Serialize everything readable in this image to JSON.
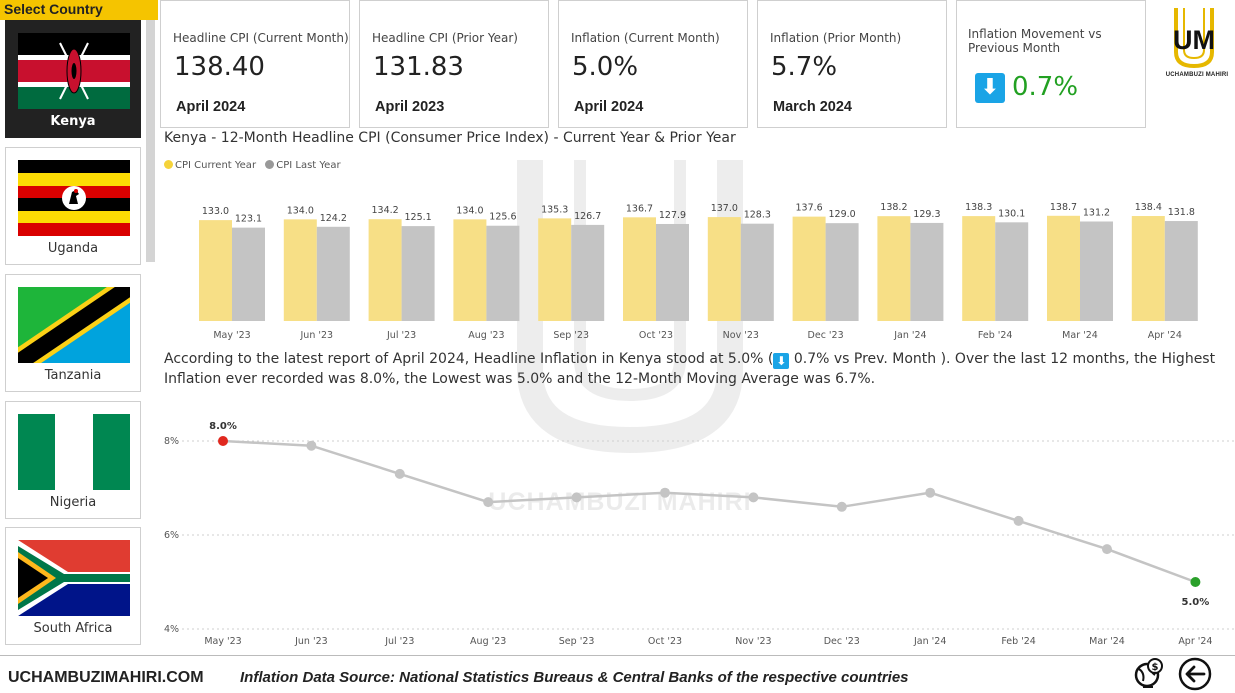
{
  "sidebar": {
    "header": "Select Country",
    "countries": [
      {
        "name": "Kenya",
        "selected": true
      },
      {
        "name": "Uganda",
        "selected": false
      },
      {
        "name": "Tanzania",
        "selected": false
      },
      {
        "name": "Nigeria",
        "selected": false
      },
      {
        "name": "South Africa",
        "selected": false
      }
    ]
  },
  "kpis": {
    "cpi_current": {
      "label": "Headline CPI (Current Month)",
      "value": "138.40",
      "period": "April 2024"
    },
    "cpi_prior_year": {
      "label": "Headline CPI (Prior Year)",
      "value": "131.83",
      "period": "April 2023"
    },
    "inflation_current": {
      "label": "Inflation (Current Month)",
      "value": "5.0%",
      "period": "April 2024"
    },
    "inflation_prior": {
      "label": "Inflation (Prior Month)",
      "value": "5.7%",
      "period": "March 2024"
    },
    "movement": {
      "label": "Inflation Movement vs Previous Month",
      "value": "0.7%",
      "direction": "down",
      "arrow_glyph": "⬇"
    }
  },
  "logo": {
    "mark": "UM",
    "text": "UCHAMBUZI MAHIRI"
  },
  "watermark": {
    "text": "UCHAMBUZI MAHIRI"
  },
  "bar_chart": {
    "title": "Kenya - 12-Month Headline CPI (Consumer Price Index) - Current Year & Prior Year",
    "legend": [
      {
        "name": "CPI Current Year",
        "color": "#f7df86"
      },
      {
        "name": "CPI Last Year",
        "color": "#c4c4c4"
      }
    ]
  },
  "narrative": {
    "before": "According to the latest report of April 2024, Headline Inflation in Kenya stood at 5.0% (",
    "arrow": "⬇",
    "after": " 0.7% vs Prev. Month ). Over the last 12 months, the Highest Inflation ever recorded was 8.0%, the Lowest was 5.0% and the 12-Month Moving Average was 6.7%."
  },
  "footer": {
    "site": "UCHAMBUZIMAHIRI.COM",
    "source": "Inflation Data Source: National Statistics Bureaus & Central Banks of the respective countries"
  },
  "colors": {
    "accent": "#f5c400",
    "current_year": "#f7df86",
    "last_year": "#c4c4c4",
    "line": "#c4c4c4",
    "high_point": "#e0281e",
    "low_point": "#2aa02a",
    "arrow_blue": "#1aa4e6",
    "positive_green": "#22a022"
  },
  "chart_data": [
    {
      "type": "bar",
      "title": "Kenya - 12-Month Headline CPI (Consumer Price Index) - Current Year & Prior Year",
      "categories": [
        "May '23",
        "Jun '23",
        "Jul '23",
        "Aug '23",
        "Sep '23",
        "Oct '23",
        "Nov '23",
        "Dec '23",
        "Jan '24",
        "Feb '24",
        "Mar '24",
        "Apr '24"
      ],
      "series": [
        {
          "name": "CPI Current Year",
          "values": [
            133.0,
            134.0,
            134.2,
            134.0,
            135.3,
            136.7,
            137.0,
            137.6,
            138.2,
            138.3,
            138.7,
            138.4
          ]
        },
        {
          "name": "CPI Last Year",
          "values": [
            123.1,
            124.2,
            125.1,
            125.6,
            126.7,
            127.9,
            128.3,
            129.0,
            129.3,
            130.1,
            131.2,
            131.8
          ]
        }
      ],
      "value_labels": {
        "current": [
          "133.0",
          "134.0",
          "134.2",
          "134.0",
          "135.3",
          "136.7",
          "137.0",
          "137.6",
          "138.2",
          "138.3",
          "138.7",
          "138.4"
        ],
        "last": [
          "123.1",
          "124.2",
          "125.1",
          "125.6",
          "126.7",
          "127.9",
          "128.3",
          "129.0",
          "129.3",
          "130.1",
          "131.2",
          "131.8"
        ]
      },
      "ylim": [
        0,
        145
      ],
      "legend": "top-left",
      "grid": false
    },
    {
      "type": "line",
      "categories": [
        "May '23",
        "Jun '23",
        "Jul '23",
        "Aug '23",
        "Sep '23",
        "Oct '23",
        "Nov '23",
        "Dec '23",
        "Jan '24",
        "Feb '24",
        "Mar '24",
        "Apr '24"
      ],
      "series": [
        {
          "values": [
            8.0,
            7.9,
            7.3,
            6.7,
            6.8,
            6.9,
            6.8,
            6.6,
            6.9,
            6.3,
            5.7,
            5.0
          ]
        }
      ],
      "y_ticks": [
        "4%",
        "6%",
        "8%"
      ],
      "ylim": [
        4,
        8.6
      ],
      "annotations": [
        {
          "index": 0,
          "label": "8.0%",
          "kind": "high"
        },
        {
          "index": 11,
          "label": "5.0%",
          "kind": "low"
        }
      ],
      "grid": true
    }
  ]
}
